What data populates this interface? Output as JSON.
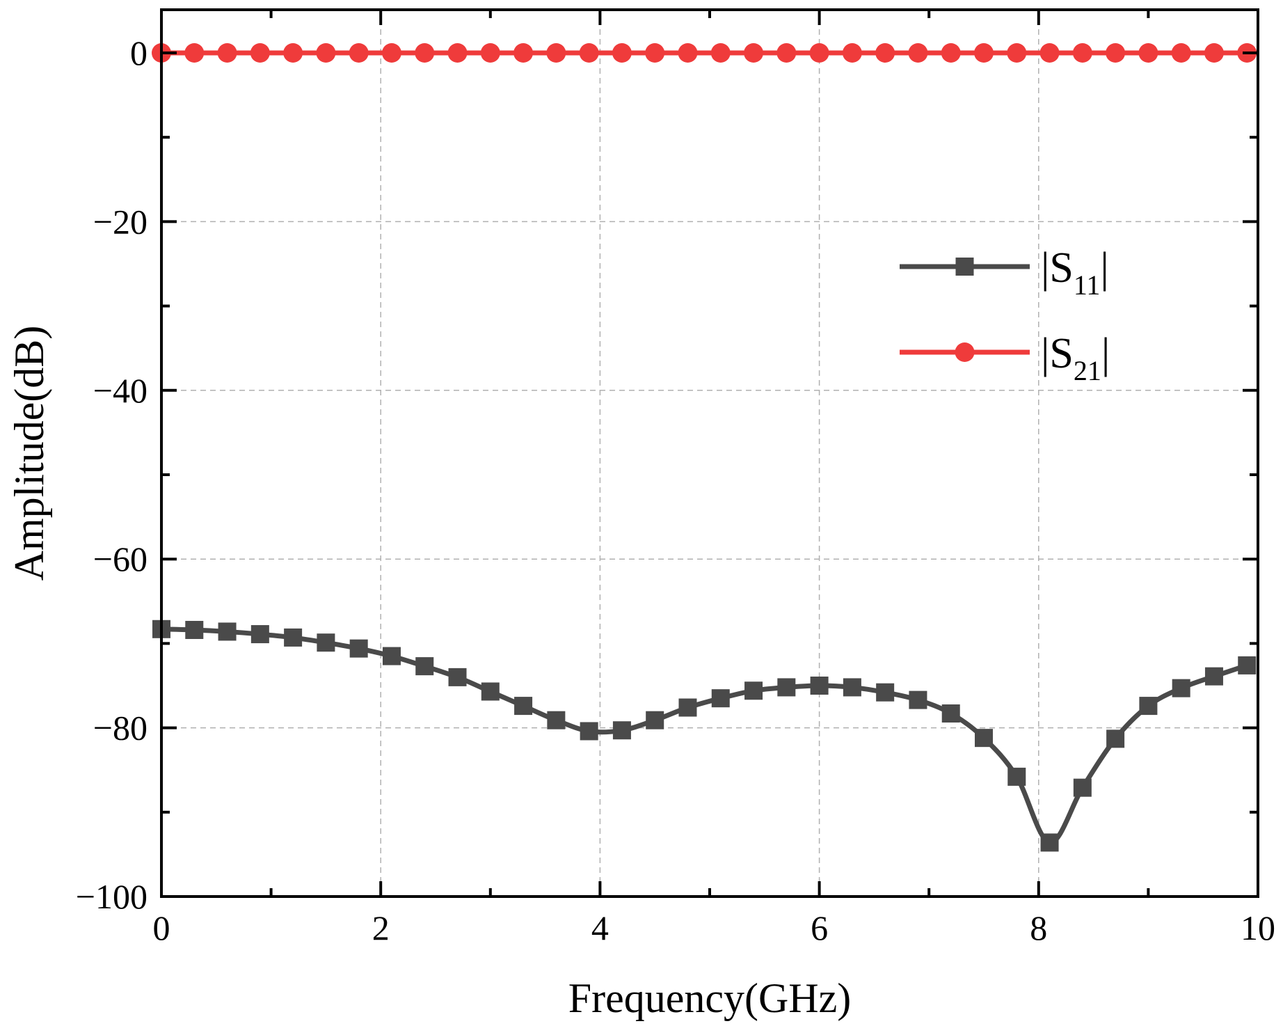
{
  "chart_data": {
    "type": "line",
    "title": "",
    "xlabel": "Frequency(GHz)",
    "ylabel": "Amplitude(dB)",
    "xlim": [
      0,
      10
    ],
    "ylim": [
      -100,
      5
    ],
    "xticks": [
      0,
      2,
      4,
      6,
      8,
      10
    ],
    "yticks": [
      0,
      -20,
      -40,
      -60,
      -80,
      -100
    ],
    "xtick_labels": [
      "0",
      "2",
      "4",
      "6",
      "8",
      "10"
    ],
    "ytick_labels": [
      "0",
      "−20",
      "−40",
      "−60",
      "−80",
      "−100"
    ],
    "grid": true,
    "legend_position": "center-right",
    "x": [
      0,
      0.3,
      0.6,
      0.9,
      1.2,
      1.5,
      1.8,
      2.1,
      2.4,
      2.7,
      3.0,
      3.3,
      3.6,
      3.9,
      4.2,
      4.5,
      4.8,
      5.1,
      5.4,
      5.7,
      6.0,
      6.3,
      6.6,
      6.9,
      7.2,
      7.5,
      7.8,
      8.1,
      8.4,
      8.7,
      9.0,
      9.3,
      9.6,
      9.9
    ],
    "series": [
      {
        "name": "|S11|",
        "legend_main": "|S",
        "legend_sub": "11",
        "legend_end": "|",
        "color": "#4a4a4a",
        "marker": "square",
        "values": [
          -68.3,
          -68.4,
          -68.6,
          -68.9,
          -69.3,
          -69.9,
          -70.6,
          -71.5,
          -72.7,
          -74.0,
          -75.7,
          -77.4,
          -79.1,
          -80.4,
          -80.3,
          -79.1,
          -77.6,
          -76.5,
          -75.6,
          -75.2,
          -75.0,
          -75.2,
          -75.8,
          -76.7,
          -78.3,
          -81.2,
          -85.8,
          -93.6,
          -87.1,
          -81.3,
          -77.4,
          -75.3,
          -73.9,
          -72.6
        ]
      },
      {
        "name": "|S21|",
        "legend_main": "|S",
        "legend_sub": "21",
        "legend_end": "|",
        "color": "#ef3b3b",
        "marker": "circle",
        "values": [
          0,
          0,
          0,
          0,
          0,
          0,
          0,
          0,
          0,
          0,
          0,
          0,
          0,
          0,
          0,
          0,
          0,
          0,
          0,
          0,
          0,
          0,
          0,
          0,
          0,
          0,
          0,
          0,
          0,
          0,
          0,
          0,
          0,
          0
        ]
      }
    ]
  }
}
